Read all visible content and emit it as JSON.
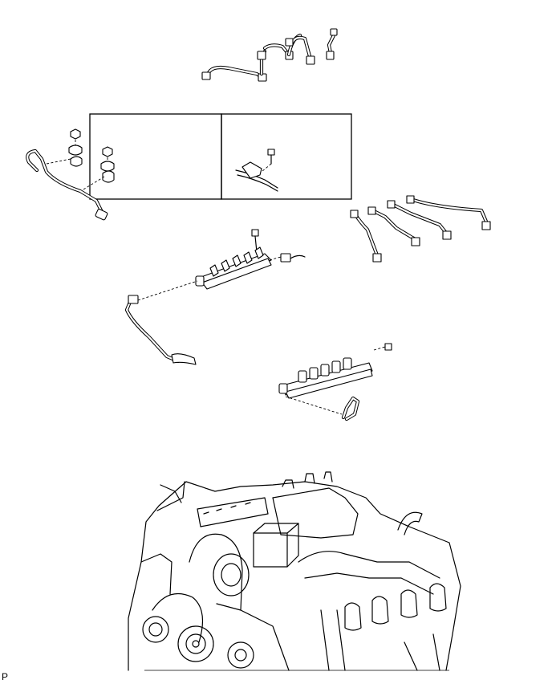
{
  "figure": {
    "corner_code": "P"
  }
}
